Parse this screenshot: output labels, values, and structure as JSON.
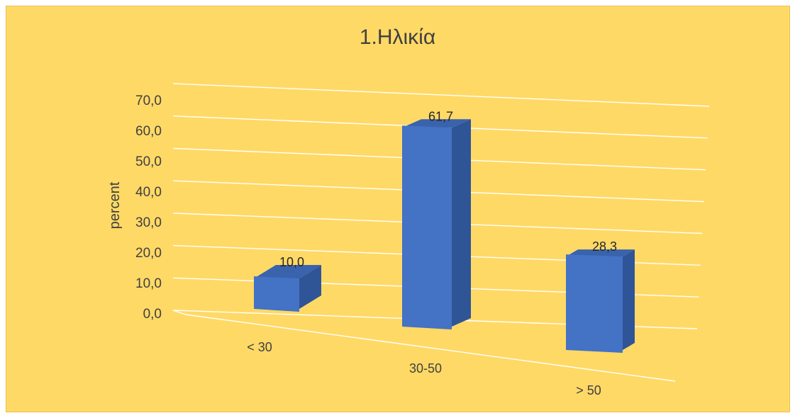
{
  "chart_data": {
    "type": "bar",
    "title": "1.Ηλικία",
    "ylabel": "percent",
    "xlabel": "",
    "categories": [
      "< 30",
      "30-50",
      "> 50"
    ],
    "values": [
      10.0,
      61.7,
      28.3
    ],
    "value_labels": [
      "10,0",
      "61,7",
      "28,3"
    ],
    "y_ticks": [
      "0,0",
      "10,0",
      "20,0",
      "30,0",
      "40,0",
      "50,0",
      "60,0",
      "70,0"
    ],
    "ylim": [
      0,
      70
    ],
    "grid": true,
    "legend": "none",
    "three_d": true,
    "colors": {
      "background": "#ffd966",
      "bar_front": "#4472c4",
      "bar_side": "#2f5597",
      "bar_top": "#3a63ad",
      "gridline": "#ffffff"
    }
  }
}
